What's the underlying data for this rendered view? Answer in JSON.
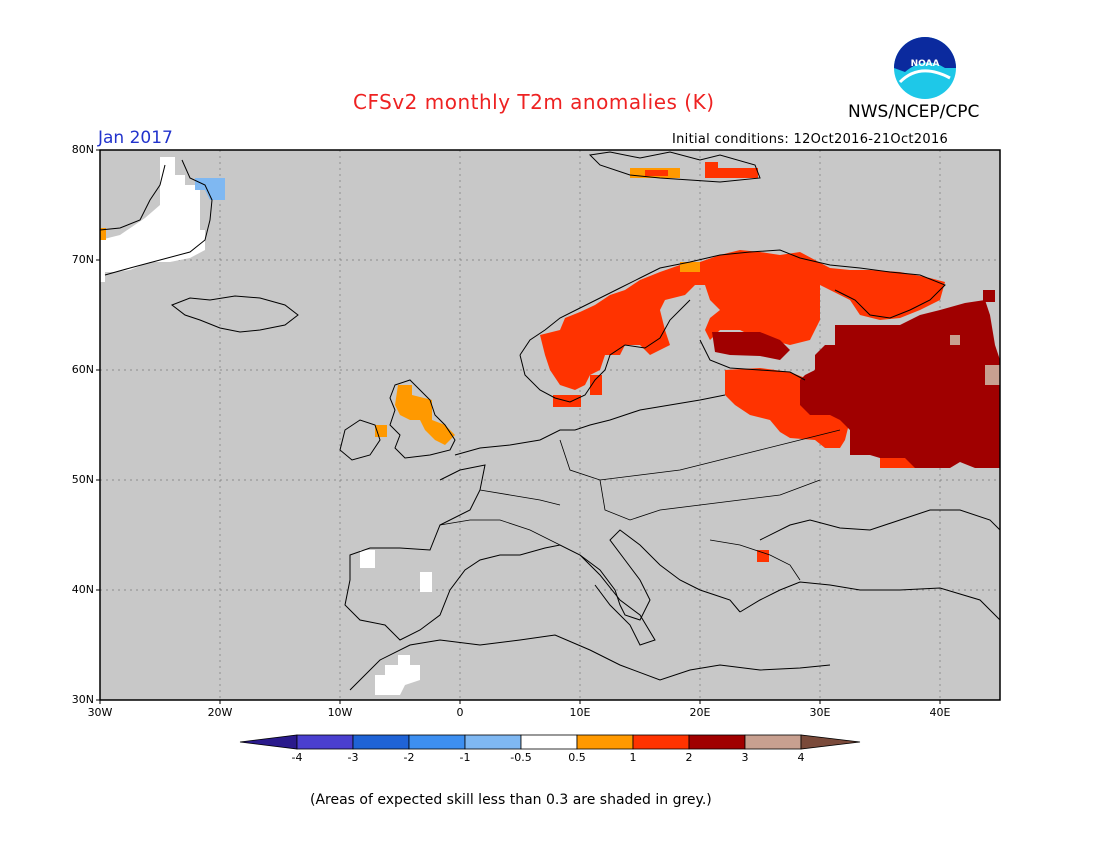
{
  "title": "CFSv2 monthly T2m anomalies (K)",
  "agency": "NWS/NCEP/CPC",
  "logo_text": "NOAA",
  "period": "Jan 2017",
  "initial_conditions": "Initial conditions: 12Oct2016-21Oct2016",
  "footnote": "(Areas of expected skill less than 0.3 are shaded in grey.)",
  "lat_labels": [
    "80N",
    "70N",
    "60N",
    "50N",
    "40N",
    "30N"
  ],
  "lon_labels": [
    "30W",
    "20W",
    "10W",
    "0",
    "10E",
    "20E",
    "30E",
    "40E"
  ],
  "colorbar": {
    "labels": [
      "-4",
      "-3",
      "-2",
      "-1",
      "-0.5",
      "0.5",
      "1",
      "2",
      "3",
      "4"
    ],
    "colors": [
      "#2a1a8c",
      "#4a3fcf",
      "#1f63d6",
      "#3d8ff0",
      "#7fb8f2",
      "#ffffff",
      "#ff9900",
      "#ff3300",
      "#a00000",
      "#c8a090",
      "#7a4a3a"
    ]
  },
  "colors": {
    "grey": "#c8c8c8",
    "warm1": "#ff9900",
    "warm2": "#ff3300",
    "warm3": "#a00000",
    "warm4": "#c8a090",
    "cool": "#7fb8f2",
    "white": "#ffffff"
  },
  "map_extent": {
    "lon": [
      -30,
      45
    ],
    "lat": [
      30,
      80
    ]
  }
}
